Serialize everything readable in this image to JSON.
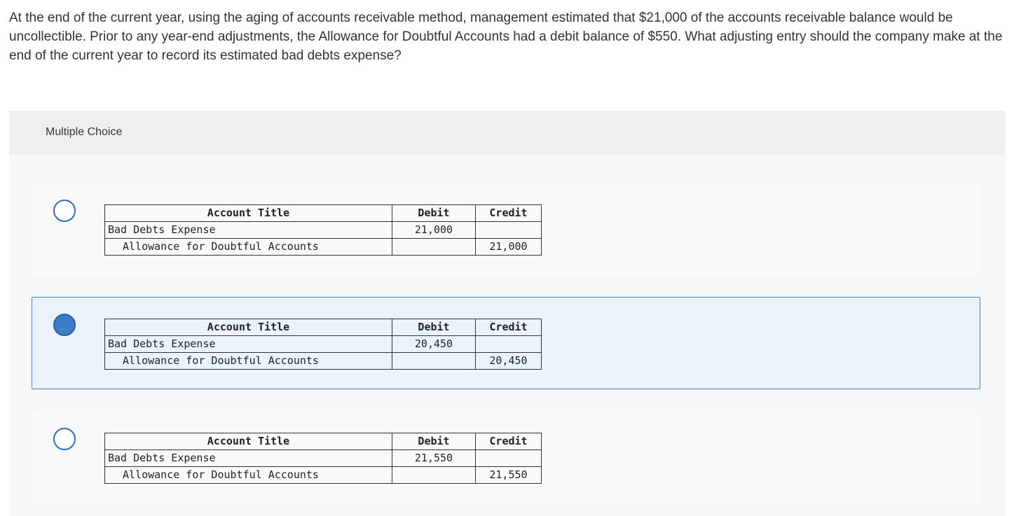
{
  "question": {
    "text": "At the end of the current year, using the aging of accounts receivable method, management estimated that $21,000 of the accounts receivable balance would be uncollectible. Prior to any year-end adjustments, the Allowance for Doubtful Accounts had a debit balance of $550. What adjusting entry should the company make at the end of the current year to record its estimated bad debts expense?"
  },
  "multiple_choice": {
    "header_label": "Multiple Choice",
    "selected_index": 1,
    "colors": {
      "radio_border": "#2d6db3",
      "radio_selected_fill": "#3f7cc7",
      "selected_option_bg": "#eaf2fb",
      "selected_option_border": "#4a86c5"
    },
    "options": [
      {
        "headers": {
          "title": "Account Title",
          "debit": "Debit",
          "credit": "Credit"
        },
        "rows": [
          {
            "account": "Bad Debts Expense",
            "debit": "21,000",
            "credit": ""
          },
          {
            "account": "Allowance for Doubtful Accounts",
            "debit": "",
            "credit": "21,000"
          }
        ]
      },
      {
        "headers": {
          "title": "Account Title",
          "debit": "Debit",
          "credit": "Credit"
        },
        "rows": [
          {
            "account": "Bad Debts Expense",
            "debit": "20,450",
            "credit": ""
          },
          {
            "account": "Allowance for Doubtful Accounts",
            "debit": "",
            "credit": "20,450"
          }
        ]
      },
      {
        "headers": {
          "title": "Account Title",
          "debit": "Debit",
          "credit": "Credit"
        },
        "rows": [
          {
            "account": "Bad Debts Expense",
            "debit": "21,550",
            "credit": ""
          },
          {
            "account": "Allowance for Doubtful Accounts",
            "debit": "",
            "credit": "21,550"
          }
        ]
      }
    ]
  }
}
